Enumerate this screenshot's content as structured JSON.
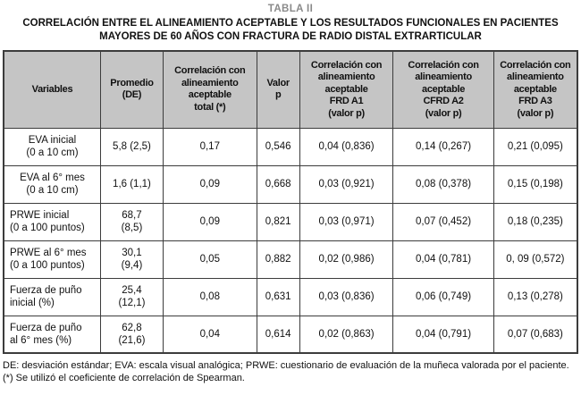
{
  "header": {
    "label": "TABLA II",
    "title": "CORRELACIÓN ENTRE EL ALINEAMIENTO ACEPTABLE Y LOS RESULTADOS FUNCIONALES EN PACIENTES MAYORES DE 60 AÑOS CON FRACTURA DE RADIO DISTAL EXTRARTICULAR"
  },
  "colors": {
    "header_bg": "#c5c5c5",
    "border": "#3c3c3c",
    "label_gray": "#8a8a8a",
    "text": "#111111",
    "background": "#ffffff"
  },
  "chart_data": {
    "type": "table",
    "columns": [
      "Variables",
      "Promedio\n(DE)",
      "Correlación con\nalineamiento\naceptable\ntotal (*)",
      "Valor\np",
      "Correlación con\nalineamiento\naceptable\nFRD A1\n(valor p)",
      "Correlación con\nalineamiento\naceptable\nCFRD A2\n(valor p)",
      "Correlación con\nalineamiento\naceptable\nFRD A3\n(valor p)"
    ],
    "rows": [
      [
        "EVA inicial\n(0 a 10 cm)",
        "5,8 (2,5)",
        "0,17",
        "0,546",
        "0,04 (0,836)",
        "0,14 (0,267)",
        "0,21 (0,095)"
      ],
      [
        "EVA al 6° mes\n(0 a 10 cm)",
        "1,6 (1,1)",
        "0,09",
        "0,668",
        "0,03 (0,921)",
        "0,08 (0,378)",
        "0,15 (0,198)"
      ],
      [
        "PRWE inicial\n(0 a 100 puntos)",
        "68,7\n(8,5)",
        "0,09",
        "0,821",
        "0,03 (0,971)",
        "0,07 (0,452)",
        "0,18 (0,235)"
      ],
      [
        "PRWE al 6° mes\n(0 a 100 puntos)",
        "30,1\n(9,4)",
        "0,05",
        "0,882",
        "0,02 (0,986)",
        "0,04 (0,781)",
        "0, 09 (0,572)"
      ],
      [
        "Fuerza de puño\ninicial (%)",
        "25,4\n(12,1)",
        "0,08",
        "0,631",
        "0,03 (0,836)",
        "0,06 (0,749)",
        "0,13 (0,278)"
      ],
      [
        "Fuerza de puño\nal 6° mes (%)",
        "62,8\n(21,6)",
        "0,04",
        "0,614",
        "0,02 (0,863)",
        "0,04 (0,791)",
        "0,07 (0,683)"
      ]
    ]
  },
  "footnotes": [
    "DE: desviación estándar; EVA: escala visual analógica; PRWE: cuestionario de evaluación de la muñeca valorada por el paciente.",
    "(*) Se utilizó el coeficiente de correlación de Spearman."
  ]
}
